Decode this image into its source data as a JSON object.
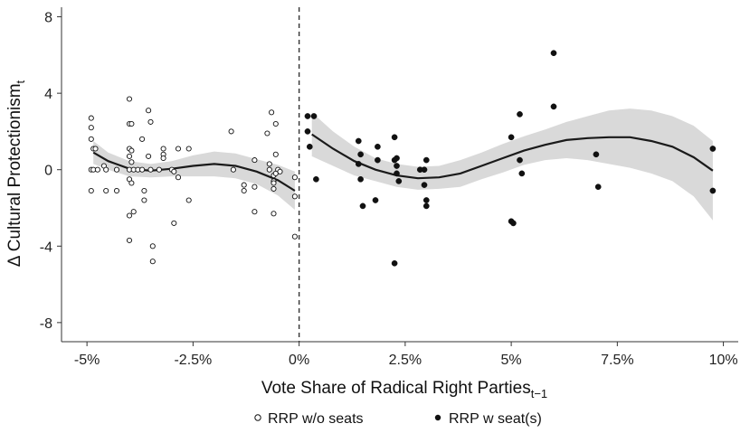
{
  "chart_data": {
    "type": "scatter",
    "xlabel": {
      "main": "Vote Share of Radical Right Parties",
      "sub": "t−1"
    },
    "ylabel": {
      "main": "Δ Cultural Protectionism",
      "sub": "t"
    },
    "xlim": [
      -5.6,
      10.35
    ],
    "ylim": [
      -9,
      8.5
    ],
    "x_ticks": [
      -5,
      -2.5,
      0,
      2.5,
      5,
      7.5,
      10
    ],
    "x_tick_labels": [
      "-5%",
      "-2.5%",
      "0%",
      "2.5%",
      "5%",
      "7.5%",
      "10%"
    ],
    "y_ticks": [
      -8,
      -4,
      0,
      4,
      8
    ],
    "y_tick_labels": [
      "-8",
      "-4",
      "0",
      "4",
      "8"
    ],
    "threshold_line_x": 0,
    "grid": false,
    "legend_position": "bottom-center",
    "colors": {
      "band": "#d9d9d9",
      "line": "#1a1a1a",
      "points": "#111111",
      "threshold": "#333333"
    },
    "series": [
      {
        "name": "RRP w/o seats",
        "marker": "hollow-circle",
        "points": [
          [
            -4.9,
            2.7
          ],
          [
            -4.9,
            2.2
          ],
          [
            -4.9,
            1.6
          ],
          [
            -4.85,
            1.1
          ],
          [
            -4.9,
            0
          ],
          [
            -4.85,
            0
          ],
          [
            -4.8,
            1.1
          ],
          [
            -4.75,
            0
          ],
          [
            -4.9,
            -1.1
          ],
          [
            -4.6,
            0.2
          ],
          [
            -4.55,
            0
          ],
          [
            -4.55,
            -1.1
          ],
          [
            -4.3,
            0
          ],
          [
            -4.3,
            -1.1
          ],
          [
            -4.0,
            3.7
          ],
          [
            -4.0,
            2.4
          ],
          [
            -3.95,
            2.4
          ],
          [
            -4.0,
            1.1
          ],
          [
            -3.95,
            1.0
          ],
          [
            -4.0,
            0.7
          ],
          [
            -3.95,
            0.4
          ],
          [
            -4.0,
            0
          ],
          [
            -3.9,
            0
          ],
          [
            -4.0,
            -0.5
          ],
          [
            -3.95,
            -0.7
          ],
          [
            -4.0,
            -2.4
          ],
          [
            -3.9,
            -2.2
          ],
          [
            -4.0,
            -3.7
          ],
          [
            -3.8,
            0
          ],
          [
            -3.7,
            1.6
          ],
          [
            -3.7,
            0
          ],
          [
            -3.65,
            -1.1
          ],
          [
            -3.65,
            -1.6
          ],
          [
            -3.55,
            3.1
          ],
          [
            -3.5,
            2.5
          ],
          [
            -3.55,
            0.7
          ],
          [
            -3.5,
            0
          ],
          [
            -3.45,
            -4.0
          ],
          [
            -3.45,
            -4.8
          ],
          [
            -3.3,
            0
          ],
          [
            -3.2,
            1.1
          ],
          [
            -3.2,
            0.8
          ],
          [
            -3.2,
            0.6
          ],
          [
            -3.0,
            0
          ],
          [
            -2.95,
            -0.1
          ],
          [
            -2.95,
            -2.8
          ],
          [
            -2.85,
            1.1
          ],
          [
            -2.85,
            -0.4
          ],
          [
            -2.6,
            1.1
          ],
          [
            -2.6,
            -1.6
          ],
          [
            -1.6,
            2.0
          ],
          [
            -1.55,
            0
          ],
          [
            -1.3,
            -0.8
          ],
          [
            -1.3,
            -1.1
          ],
          [
            -1.05,
            0.5
          ],
          [
            -1.05,
            -0.9
          ],
          [
            -1.05,
            -2.2
          ],
          [
            -0.75,
            1.9
          ],
          [
            -0.7,
            0.3
          ],
          [
            -0.7,
            0
          ],
          [
            -0.6,
            -2.3
          ],
          [
            -0.65,
            3.0
          ],
          [
            -0.55,
            2.4
          ],
          [
            -0.5,
            0
          ],
          [
            -0.6,
            -0.3
          ],
          [
            -0.6,
            -0.6
          ],
          [
            -0.6,
            -0.7
          ],
          [
            -0.6,
            -1.0
          ],
          [
            -0.55,
            0.8
          ],
          [
            -0.55,
            -0.2
          ],
          [
            -0.45,
            -0.1
          ],
          [
            -0.1,
            -0.4
          ],
          [
            -0.1,
            -1.4
          ],
          [
            -0.1,
            -3.5
          ]
        ]
      },
      {
        "name": "RRP w seat(s)",
        "marker": "filled-circle",
        "points": [
          [
            0.2,
            2.8
          ],
          [
            0.35,
            2.8
          ],
          [
            0.2,
            2.0
          ],
          [
            0.25,
            1.2
          ],
          [
            0.4,
            -0.5
          ],
          [
            1.4,
            1.5
          ],
          [
            1.45,
            0.8
          ],
          [
            1.4,
            0.3
          ],
          [
            1.45,
            -0.5
          ],
          [
            1.5,
            -1.9
          ],
          [
            1.85,
            1.2
          ],
          [
            1.85,
            0.5
          ],
          [
            1.8,
            -1.6
          ],
          [
            2.25,
            1.7
          ],
          [
            2.3,
            0.6
          ],
          [
            2.25,
            0.5
          ],
          [
            2.3,
            0.2
          ],
          [
            2.3,
            -0.2
          ],
          [
            2.35,
            -0.6
          ],
          [
            2.25,
            -4.9
          ],
          [
            2.85,
            0
          ],
          [
            2.95,
            0
          ],
          [
            3.0,
            0.5
          ],
          [
            2.95,
            -0.8
          ],
          [
            3.0,
            -1.6
          ],
          [
            3.0,
            -1.9
          ],
          [
            5.0,
            1.7
          ],
          [
            5.0,
            -2.7
          ],
          [
            5.05,
            -2.8
          ],
          [
            5.2,
            2.9
          ],
          [
            5.2,
            0.5
          ],
          [
            5.25,
            -0.2
          ],
          [
            6.0,
            6.1
          ],
          [
            6.0,
            3.3
          ],
          [
            7.0,
            0.8
          ],
          [
            7.05,
            -0.9
          ],
          [
            9.75,
            1.1
          ],
          [
            9.75,
            -1.1
          ]
        ]
      }
    ],
    "fit_left": {
      "points": [
        [
          -4.85,
          0.9
        ],
        [
          -4.5,
          0.45
        ],
        [
          -4.0,
          0.05
        ],
        [
          -3.5,
          -0.05
        ],
        [
          -3.0,
          0.05
        ],
        [
          -2.5,
          0.2
        ],
        [
          -2.0,
          0.3
        ],
        [
          -1.5,
          0.2
        ],
        [
          -1.0,
          -0.1
        ],
        [
          -0.5,
          -0.55
        ],
        [
          -0.1,
          -1.1
        ]
      ],
      "band_upper": [
        [
          -4.85,
          1.5
        ],
        [
          -4.5,
          0.9
        ],
        [
          -4.0,
          0.45
        ],
        [
          -3.5,
          0.3
        ],
        [
          -3.0,
          0.45
        ],
        [
          -2.5,
          0.75
        ],
        [
          -2.0,
          0.95
        ],
        [
          -1.5,
          0.85
        ],
        [
          -1.0,
          0.55
        ],
        [
          -0.5,
          0.25
        ],
        [
          -0.1,
          -0.1
        ]
      ],
      "band_lower": [
        [
          -4.85,
          0.3
        ],
        [
          -4.5,
          0.0
        ],
        [
          -4.0,
          -0.35
        ],
        [
          -3.5,
          -0.4
        ],
        [
          -3.0,
          -0.35
        ],
        [
          -2.5,
          -0.35
        ],
        [
          -2.0,
          -0.35
        ],
        [
          -1.5,
          -0.45
        ],
        [
          -1.0,
          -0.75
        ],
        [
          -0.5,
          -1.35
        ],
        [
          -0.1,
          -2.1
        ]
      ]
    },
    "fit_right": {
      "points": [
        [
          0.3,
          1.85
        ],
        [
          0.8,
          1.1
        ],
        [
          1.3,
          0.45
        ],
        [
          1.8,
          0.0
        ],
        [
          2.3,
          -0.3
        ],
        [
          2.8,
          -0.45
        ],
        [
          3.3,
          -0.4
        ],
        [
          3.8,
          -0.2
        ],
        [
          4.3,
          0.2
        ],
        [
          4.8,
          0.6
        ],
        [
          5.3,
          1.0
        ],
        [
          5.8,
          1.3
        ],
        [
          6.3,
          1.55
        ],
        [
          6.8,
          1.65
        ],
        [
          7.3,
          1.7
        ],
        [
          7.8,
          1.7
        ],
        [
          8.3,
          1.5
        ],
        [
          8.8,
          1.2
        ],
        [
          9.3,
          0.65
        ],
        [
          9.75,
          -0.05
        ]
      ],
      "band_upper": [
        [
          0.3,
          3.0
        ],
        [
          0.8,
          2.0
        ],
        [
          1.3,
          1.2
        ],
        [
          1.8,
          0.6
        ],
        [
          2.3,
          0.3
        ],
        [
          2.8,
          0.15
        ],
        [
          3.3,
          0.2
        ],
        [
          3.8,
          0.5
        ],
        [
          4.3,
          0.9
        ],
        [
          4.8,
          1.35
        ],
        [
          5.3,
          1.75
        ],
        [
          5.8,
          2.1
        ],
        [
          6.3,
          2.5
        ],
        [
          6.8,
          2.8
        ],
        [
          7.3,
          3.1
        ],
        [
          7.8,
          3.2
        ],
        [
          8.3,
          3.1
        ],
        [
          8.8,
          2.8
        ],
        [
          9.3,
          2.3
        ],
        [
          9.75,
          1.5
        ]
      ],
      "band_lower": [
        [
          0.3,
          0.7
        ],
        [
          0.8,
          0.2
        ],
        [
          1.3,
          -0.3
        ],
        [
          1.8,
          -0.6
        ],
        [
          2.3,
          -0.9
        ],
        [
          2.8,
          -1.05
        ],
        [
          3.3,
          -1.0
        ],
        [
          3.8,
          -0.9
        ],
        [
          4.3,
          -0.5
        ],
        [
          4.8,
          -0.15
        ],
        [
          5.3,
          0.25
        ],
        [
          5.8,
          0.5
        ],
        [
          6.3,
          0.6
        ],
        [
          6.8,
          0.5
        ],
        [
          7.3,
          0.3
        ],
        [
          7.8,
          0.1
        ],
        [
          8.3,
          -0.2
        ],
        [
          8.8,
          -0.6
        ],
        [
          9.3,
          -1.4
        ],
        [
          9.75,
          -2.65
        ]
      ]
    }
  }
}
